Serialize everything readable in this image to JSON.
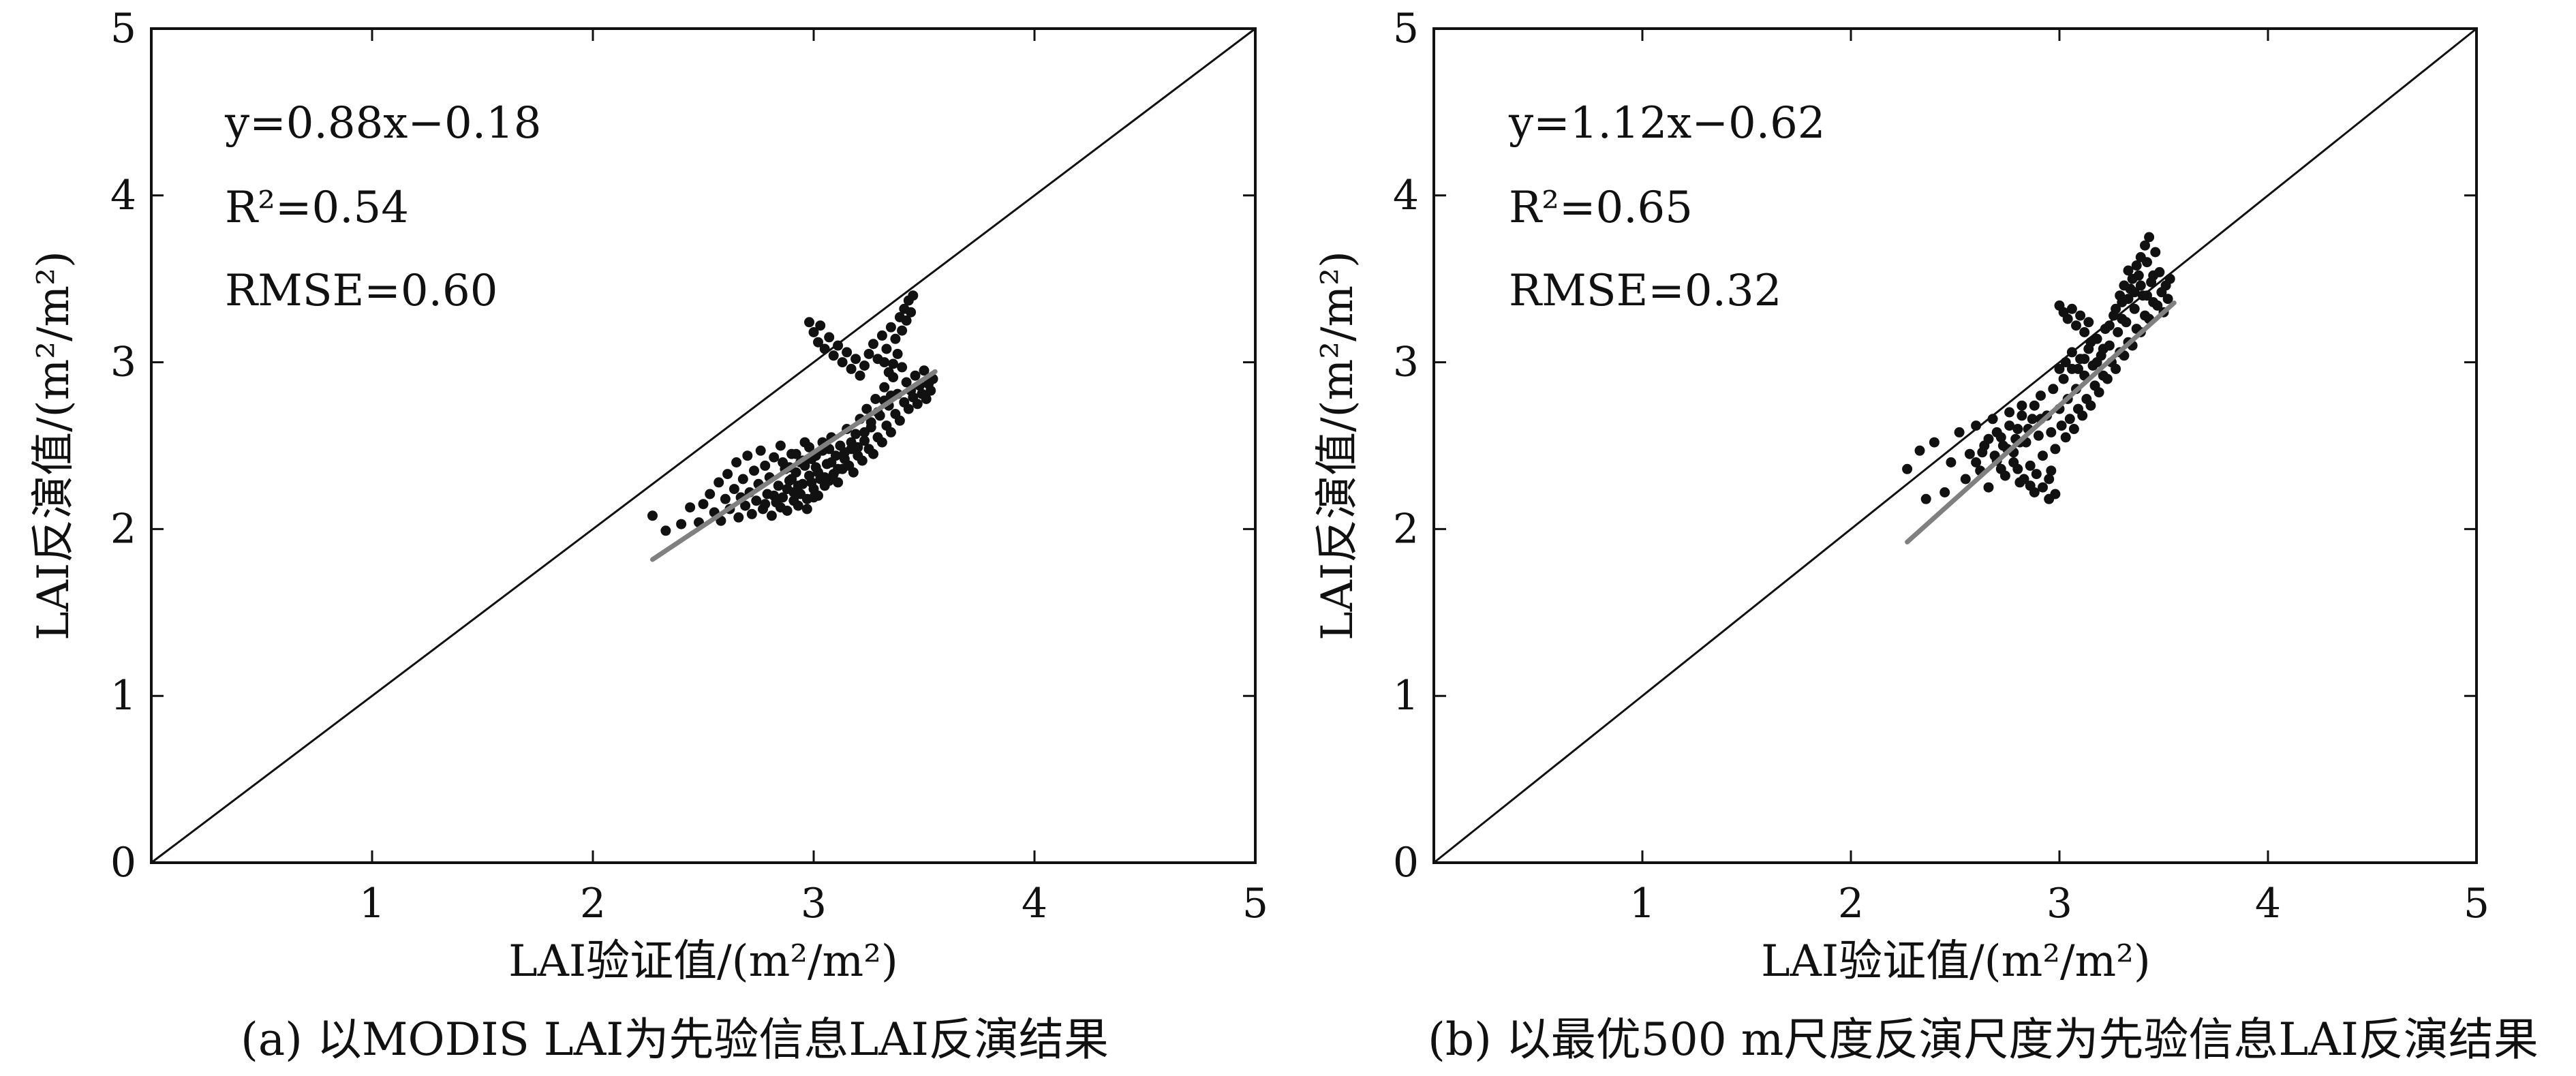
{
  "chart_data": [
    {
      "type": "scatter",
      "caption": "(a) 以MODIS LAI为先验信息LAI反演结果",
      "xlabel": "LAI验证值/(m²/m²)",
      "ylabel": "LAI反演值/(m²/m²)",
      "xlim": [
        0,
        5
      ],
      "ylim": [
        0,
        5
      ],
      "xticks": [
        "1",
        "2",
        "3",
        "4",
        "5"
      ],
      "yticks": [
        "0",
        "1",
        "2",
        "3",
        "4",
        "5"
      ],
      "annotations": [
        "y=0.88x−0.18",
        "R²=0.54",
        "RMSE=0.60"
      ],
      "fit": {
        "slope": 0.88,
        "intercept": -0.18,
        "x_range": [
          2.27,
          3.55
        ],
        "color": "#808080"
      },
      "reference_line": [
        [
          0,
          0
        ],
        [
          5,
          5
        ]
      ],
      "point_color": "#111111",
      "points": [
        [
          2.27,
          2.08
        ],
        [
          2.33,
          1.99
        ],
        [
          2.4,
          2.03
        ],
        [
          2.44,
          2.13
        ],
        [
          2.48,
          2.04
        ],
        [
          2.5,
          2.15
        ],
        [
          2.53,
          2.21
        ],
        [
          2.55,
          2.1
        ],
        [
          2.57,
          2.28
        ],
        [
          2.58,
          2.05
        ],
        [
          2.6,
          2.18
        ],
        [
          2.61,
          2.33
        ],
        [
          2.62,
          2.12
        ],
        [
          2.64,
          2.24
        ],
        [
          2.65,
          2.4
        ],
        [
          2.66,
          2.07
        ],
        [
          2.67,
          2.19
        ],
        [
          2.68,
          2.3
        ],
        [
          2.69,
          2.14
        ],
        [
          2.7,
          2.44
        ],
        [
          2.71,
          2.22
        ],
        [
          2.72,
          2.09
        ],
        [
          2.73,
          2.35
        ],
        [
          2.74,
          2.17
        ],
        [
          2.75,
          2.27
        ],
        [
          2.76,
          2.47
        ],
        [
          2.77,
          2.12
        ],
        [
          2.78,
          2.38
        ],
        [
          2.79,
          2.21
        ],
        [
          2.8,
          2.31
        ],
        [
          2.81,
          2.08
        ],
        [
          2.82,
          2.43
        ],
        [
          2.83,
          2.16
        ],
        [
          2.84,
          2.26
        ],
        [
          2.85,
          2.5
        ],
        [
          2.86,
          2.19
        ],
        [
          2.87,
          2.36
        ],
        [
          2.88,
          2.11
        ],
        [
          2.89,
          2.29
        ],
        [
          2.9,
          2.45
        ],
        [
          2.91,
          2.22
        ],
        [
          2.92,
          2.34
        ],
        [
          2.93,
          2.14
        ],
        [
          2.94,
          2.4
        ],
        [
          2.95,
          2.27
        ],
        [
          2.96,
          2.52
        ],
        [
          2.97,
          2.18
        ],
        [
          2.98,
          2.32
        ],
        [
          2.99,
          2.42
        ],
        [
          3.0,
          2.24
        ],
        [
          3.01,
          2.37
        ],
        [
          3.02,
          2.2
        ],
        [
          3.03,
          2.3
        ],
        [
          3.04,
          2.47
        ],
        [
          3.05,
          2.26
        ],
        [
          3.06,
          2.39
        ],
        [
          3.07,
          2.29
        ],
        [
          3.08,
          2.55
        ],
        [
          3.09,
          2.33
        ],
        [
          3.1,
          2.44
        ],
        [
          3.11,
          2.28
        ],
        [
          3.12,
          2.5
        ],
        [
          3.13,
          2.36
        ],
        [
          3.14,
          2.42
        ],
        [
          3.15,
          2.6
        ],
        [
          3.16,
          2.38
        ],
        [
          3.17,
          2.48
        ],
        [
          3.18,
          2.34
        ],
        [
          3.19,
          2.57
        ],
        [
          3.2,
          2.44
        ],
        [
          3.21,
          2.66
        ],
        [
          3.22,
          2.41
        ],
        [
          3.23,
          2.53
        ],
        [
          3.24,
          2.72
        ],
        [
          3.25,
          2.48
        ],
        [
          3.26,
          2.61
        ],
        [
          3.27,
          2.45
        ],
        [
          3.28,
          2.78
        ],
        [
          3.29,
          2.55
        ],
        [
          3.3,
          2.68
        ],
        [
          3.31,
          2.52
        ],
        [
          3.32,
          2.85
        ],
        [
          3.33,
          2.62
        ],
        [
          3.34,
          2.74
        ],
        [
          3.35,
          2.58
        ],
        [
          3.36,
          2.91
        ],
        [
          3.37,
          2.69
        ],
        [
          3.38,
          2.81
        ],
        [
          3.39,
          2.65
        ],
        [
          3.4,
          2.97
        ],
        [
          3.41,
          2.76
        ],
        [
          3.42,
          2.88
        ],
        [
          3.43,
          2.72
        ],
        [
          3.44,
          2.83
        ],
        [
          3.45,
          2.79
        ],
        [
          3.46,
          2.92
        ],
        [
          3.47,
          2.75
        ],
        [
          3.48,
          2.86
        ],
        [
          3.49,
          2.81
        ],
        [
          3.5,
          2.95
        ],
        [
          3.51,
          2.78
        ],
        [
          3.52,
          2.87
        ],
        [
          3.53,
          2.83
        ],
        [
          3.54,
          2.9
        ],
        [
          2.98,
          3.24
        ],
        [
          3.0,
          3.18
        ],
        [
          3.02,
          3.12
        ],
        [
          3.03,
          3.22
        ],
        [
          3.05,
          3.08
        ],
        [
          3.07,
          3.15
        ],
        [
          3.09,
          3.04
        ],
        [
          3.11,
          3.1
        ],
        [
          3.13,
          3.0
        ],
        [
          3.15,
          3.06
        ],
        [
          3.17,
          2.96
        ],
        [
          3.19,
          3.02
        ],
        [
          3.21,
          2.92
        ],
        [
          3.23,
          2.98
        ],
        [
          3.25,
          3.05
        ],
        [
          3.27,
          3.11
        ],
        [
          3.29,
          3.02
        ],
        [
          3.31,
          3.16
        ],
        [
          3.33,
          3.08
        ],
        [
          3.35,
          3.21
        ],
        [
          3.37,
          3.14
        ],
        [
          3.39,
          3.27
        ],
        [
          3.4,
          3.19
        ],
        [
          3.41,
          3.32
        ],
        [
          3.42,
          3.25
        ],
        [
          3.43,
          3.37
        ],
        [
          3.44,
          3.3
        ],
        [
          3.45,
          3.4
        ],
        [
          3.38,
          3.05
        ],
        [
          3.36,
          2.99
        ],
        [
          3.34,
          2.94
        ],
        [
          3.32,
          3.0
        ],
        [
          2.9,
          2.3
        ],
        [
          2.93,
          2.26
        ],
        [
          2.96,
          2.38
        ],
        [
          2.99,
          2.28
        ],
        [
          3.02,
          2.34
        ],
        [
          3.05,
          2.31
        ],
        [
          3.08,
          2.4
        ],
        [
          3.11,
          2.36
        ],
        [
          3.14,
          2.46
        ],
        [
          3.17,
          2.52
        ],
        [
          3.2,
          2.49
        ],
        [
          3.23,
          2.58
        ],
        [
          3.26,
          2.64
        ],
        [
          3.29,
          2.7
        ],
        [
          3.32,
          2.77
        ],
        [
          3.35,
          2.8
        ],
        [
          2.86,
          2.4
        ],
        [
          2.89,
          2.37
        ],
        [
          2.92,
          2.45
        ],
        [
          2.95,
          2.41
        ],
        [
          2.98,
          2.49
        ],
        [
          3.01,
          2.44
        ],
        [
          3.04,
          2.52
        ],
        [
          3.07,
          2.48
        ],
        [
          2.78,
          2.15
        ],
        [
          2.82,
          2.2
        ],
        [
          2.85,
          2.13
        ],
        [
          2.88,
          2.24
        ],
        [
          2.91,
          2.17
        ],
        [
          2.94,
          2.21
        ],
        [
          2.97,
          2.12
        ],
        [
          3.0,
          2.19
        ]
      ]
    },
    {
      "type": "scatter",
      "caption": "(b) 以最优500 m尺度反演尺度为先验信息LAI反演结果",
      "xlabel": "LAI验证值/(m²/m²)",
      "ylabel": "LAI反演值/(m²/m²)",
      "xlim": [
        0,
        5
      ],
      "ylim": [
        0,
        5
      ],
      "xticks": [
        "1",
        "2",
        "3",
        "4",
        "5"
      ],
      "yticks": [
        "0",
        "1",
        "2",
        "3",
        "4",
        "5"
      ],
      "annotations": [
        "y=1.12x−0.62",
        "R²=0.65",
        "RMSE=0.32"
      ],
      "fit": {
        "slope": 1.12,
        "intercept": -0.62,
        "x_range": [
          2.27,
          3.55
        ],
        "color": "#808080"
      },
      "reference_line": [
        [
          0,
          0
        ],
        [
          5,
          5
        ]
      ],
      "point_color": "#111111",
      "points": [
        [
          2.27,
          2.36
        ],
        [
          2.33,
          2.47
        ],
        [
          2.36,
          2.18
        ],
        [
          2.4,
          2.52
        ],
        [
          2.45,
          2.22
        ],
        [
          2.48,
          2.4
        ],
        [
          2.52,
          2.58
        ],
        [
          2.55,
          2.3
        ],
        [
          2.57,
          2.45
        ],
        [
          2.6,
          2.62
        ],
        [
          2.62,
          2.35
        ],
        [
          2.64,
          2.5
        ],
        [
          2.66,
          2.25
        ],
        [
          2.68,
          2.66
        ],
        [
          2.7,
          2.41
        ],
        [
          2.72,
          2.55
        ],
        [
          2.74,
          2.32
        ],
        [
          2.76,
          2.7
        ],
        [
          2.78,
          2.46
        ],
        [
          2.8,
          2.6
        ],
        [
          2.81,
          2.28
        ],
        [
          2.82,
          2.74
        ],
        [
          2.84,
          2.52
        ],
        [
          2.86,
          2.38
        ],
        [
          2.87,
          2.66
        ],
        [
          2.88,
          2.22
        ],
        [
          2.9,
          2.56
        ],
        [
          2.91,
          2.8
        ],
        [
          2.92,
          2.44
        ],
        [
          2.94,
          2.68
        ],
        [
          2.95,
          2.3
        ],
        [
          2.96,
          2.58
        ],
        [
          2.97,
          2.84
        ],
        [
          2.98,
          2.48
        ],
        [
          3.0,
          2.72
        ],
        [
          3.01,
          2.62
        ],
        [
          3.02,
          2.9
        ],
        [
          3.03,
          2.55
        ],
        [
          3.04,
          2.78
        ],
        [
          3.05,
          2.66
        ],
        [
          3.06,
          2.96
        ],
        [
          3.07,
          2.6
        ],
        [
          3.08,
          2.84
        ],
        [
          3.09,
          2.72
        ],
        [
          3.1,
          3.02
        ],
        [
          3.11,
          2.68
        ],
        [
          3.12,
          2.92
        ],
        [
          3.13,
          2.78
        ],
        [
          3.14,
          3.08
        ],
        [
          3.15,
          2.74
        ],
        [
          3.16,
          2.98
        ],
        [
          3.17,
          2.86
        ],
        [
          3.18,
          3.14
        ],
        [
          3.19,
          2.82
        ],
        [
          3.2,
          3.04
        ],
        [
          3.21,
          2.92
        ],
        [
          3.22,
          3.2
        ],
        [
          3.23,
          2.9
        ],
        [
          3.24,
          3.1
        ],
        [
          3.25,
          3.0
        ],
        [
          3.26,
          3.28
        ],
        [
          3.27,
          2.96
        ],
        [
          3.28,
          3.18
        ],
        [
          3.29,
          3.06
        ],
        [
          3.3,
          3.36
        ],
        [
          3.31,
          3.04
        ],
        [
          3.32,
          3.24
        ],
        [
          3.33,
          3.12
        ],
        [
          3.34,
          3.44
        ],
        [
          3.35,
          3.1
        ],
        [
          3.36,
          3.32
        ],
        [
          3.37,
          3.2
        ],
        [
          3.38,
          3.52
        ],
        [
          3.39,
          3.18
        ],
        [
          3.4,
          3.4
        ],
        [
          3.41,
          3.28
        ],
        [
          3.42,
          3.6
        ],
        [
          3.43,
          3.26
        ],
        [
          3.44,
          3.48
        ],
        [
          3.45,
          3.36
        ],
        [
          3.46,
          3.66
        ],
        [
          3.47,
          3.34
        ],
        [
          3.48,
          3.54
        ],
        [
          3.49,
          3.42
        ],
        [
          3.5,
          3.3
        ],
        [
          3.51,
          3.46
        ],
        [
          3.52,
          3.38
        ],
        [
          3.53,
          3.5
        ],
        [
          3.43,
          3.75
        ],
        [
          3.41,
          3.7
        ],
        [
          3.39,
          3.63
        ],
        [
          3.37,
          3.58
        ],
        [
          3.35,
          3.5
        ],
        [
          3.33,
          3.55
        ],
        [
          3.31,
          3.46
        ],
        [
          3.29,
          3.4
        ],
        [
          3.0,
          3.34
        ],
        [
          3.02,
          3.3
        ],
        [
          3.04,
          3.26
        ],
        [
          3.06,
          3.32
        ],
        [
          3.08,
          3.22
        ],
        [
          3.1,
          3.28
        ],
        [
          3.12,
          3.18
        ],
        [
          3.14,
          3.24
        ],
        [
          2.8,
          2.36
        ],
        [
          2.83,
          2.3
        ],
        [
          2.86,
          2.26
        ],
        [
          2.89,
          2.33
        ],
        [
          2.92,
          2.25
        ],
        [
          2.95,
          2.18
        ],
        [
          2.98,
          2.21
        ],
        [
          2.96,
          2.35
        ],
        [
          2.7,
          2.58
        ],
        [
          2.73,
          2.5
        ],
        [
          2.76,
          2.62
        ],
        [
          2.79,
          2.54
        ],
        [
          2.82,
          2.68
        ],
        [
          2.85,
          2.6
        ],
        [
          2.88,
          2.74
        ],
        [
          2.91,
          2.66
        ],
        [
          2.6,
          2.4
        ],
        [
          2.63,
          2.46
        ],
        [
          2.66,
          2.54
        ],
        [
          2.69,
          2.44
        ],
        [
          2.72,
          2.36
        ],
        [
          2.75,
          2.48
        ],
        [
          2.78,
          2.4
        ],
        [
          2.81,
          2.52
        ],
        [
          3.0,
          2.96
        ],
        [
          3.03,
          3.0
        ],
        [
          3.06,
          3.06
        ],
        [
          3.09,
          2.96
        ],
        [
          3.12,
          3.02
        ],
        [
          3.15,
          3.12
        ],
        [
          3.18,
          3.0
        ],
        [
          3.21,
          3.08
        ],
        [
          3.24,
          3.22
        ],
        [
          3.27,
          3.32
        ],
        [
          3.3,
          3.26
        ],
        [
          3.33,
          3.38
        ],
        [
          3.36,
          3.42
        ],
        [
          3.39,
          3.46
        ],
        [
          3.42,
          3.4
        ],
        [
          3.45,
          3.52
        ]
      ]
    }
  ]
}
